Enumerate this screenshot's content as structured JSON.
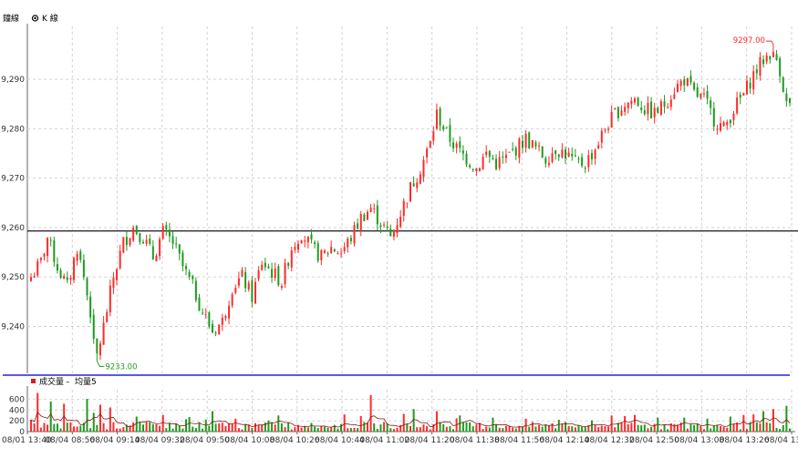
{
  "header": {
    "tab1": "鐘線",
    "tab2": "K 線"
  },
  "volume_legend": {
    "series1": "成交量",
    "sep": "–",
    "series2": "均量5"
  },
  "colors": {
    "up": "#ff2a2a",
    "down": "#1f9a1f",
    "grid": "#d2d2d2",
    "hline": "#000000",
    "separator": "#2222dd",
    "ma": "#8b1a1a"
  },
  "chart_data": [
    {
      "type": "candlestick",
      "title": "",
      "y_ticks": [
        9240,
        9250,
        9260,
        9270,
        9280,
        9290
      ],
      "ylim": [
        9230.5,
        9300.7
      ],
      "reference_line": 9259.3,
      "high_label": "9297.00",
      "low_label": "9233.00",
      "x_ticks": [
        "08/01 13:40",
        "08/04 08:56",
        "08/04 09:14",
        "08/04 09:32",
        "08/04 09:50",
        "08/04 10:08",
        "08/04 10:26",
        "08/04 10:44",
        "08/04 11:02",
        "08/04 11:20",
        "08/04 11:38",
        "08/04 11:56",
        "08/04 12:14",
        "08/04 12:32",
        "08/04 12:50",
        "08/04 13:08",
        "08/04 13:26",
        "08/04 13"
      ],
      "close_path": [
        [
          0,
          9250
        ],
        [
          3,
          9253
        ],
        [
          5,
          9258
        ],
        [
          8,
          9252
        ],
        [
          11,
          9248
        ],
        [
          14,
          9256
        ],
        [
          16,
          9250
        ],
        [
          18,
          9243
        ],
        [
          19,
          9236
        ],
        [
          20,
          9234
        ],
        [
          22,
          9240
        ],
        [
          25,
          9250
        ],
        [
          28,
          9257
        ],
        [
          31,
          9260
        ],
        [
          34,
          9258
        ],
        [
          37,
          9254
        ],
        [
          40,
          9259
        ],
        [
          43,
          9257
        ],
        [
          46,
          9252
        ],
        [
          49,
          9248
        ],
        [
          52,
          9243
        ],
        [
          55,
          9239
        ],
        [
          58,
          9241
        ],
        [
          61,
          9248
        ],
        [
          64,
          9250
        ],
        [
          67,
          9246
        ],
        [
          70,
          9253
        ],
        [
          73,
          9251
        ],
        [
          76,
          9249
        ],
        [
          79,
          9256
        ],
        [
          82,
          9259
        ],
        [
          85,
          9256
        ],
        [
          88,
          9254
        ],
        [
          91,
          9256
        ],
        [
          94,
          9255
        ],
        [
          97,
          9258
        ],
        [
          100,
          9262
        ],
        [
          103,
          9264
        ],
        [
          106,
          9261
        ],
        [
          109,
          9258
        ],
        [
          112,
          9263
        ],
        [
          115,
          9268
        ],
        [
          118,
          9272
        ],
        [
          121,
          9277
        ],
        [
          123,
          9283
        ],
        [
          126,
          9279
        ],
        [
          129,
          9276
        ],
        [
          132,
          9274
        ],
        [
          135,
          9272
        ],
        [
          138,
          9275
        ],
        [
          141,
          9273
        ],
        [
          144,
          9274
        ],
        [
          147,
          9276
        ],
        [
          150,
          9278
        ],
        [
          153,
          9276
        ],
        [
          156,
          9274
        ],
        [
          159,
          9276
        ],
        [
          162,
          9275
        ],
        [
          165,
          9273
        ],
        [
          168,
          9273
        ],
        [
          171,
          9276
        ],
        [
          174,
          9280
        ],
        [
          177,
          9283
        ],
        [
          180,
          9285
        ],
        [
          183,
          9286
        ],
        [
          186,
          9284
        ],
        [
          189,
          9283
        ],
        [
          192,
          9285
        ],
        [
          195,
          9288
        ],
        [
          198,
          9290
        ],
        [
          201,
          9287
        ],
        [
          204,
          9286
        ],
        [
          207,
          9282
        ],
        [
          210,
          9280
        ],
        [
          213,
          9284
        ],
        [
          216,
          9287
        ],
        [
          219,
          9291
        ],
        [
          222,
          9294
        ],
        [
          225,
          9296
        ],
        [
          227,
          9292
        ],
        [
          229,
          9285
        ]
      ],
      "volume": {
        "y_ticks": [
          0,
          200,
          400,
          600
        ],
        "y_tick_labels": [
          "0",
          "200",
          "400",
          "600"
        ],
        "ylim": [
          0,
          780
        ],
        "spikes": [
          [
            2,
            720
          ],
          [
            6,
            560
          ],
          [
            10,
            520
          ],
          [
            17,
            610
          ],
          [
            19,
            350
          ],
          [
            21,
            500
          ],
          [
            24,
            450
          ],
          [
            32,
            280
          ],
          [
            40,
            310
          ],
          [
            48,
            270
          ],
          [
            55,
            380
          ],
          [
            62,
            240
          ],
          [
            75,
            300
          ],
          [
            95,
            320
          ],
          [
            100,
            290
          ],
          [
            103,
            680
          ],
          [
            113,
            330
          ],
          [
            116,
            420
          ],
          [
            123,
            380
          ],
          [
            130,
            300
          ],
          [
            140,
            260
          ],
          [
            150,
            240
          ],
          [
            160,
            220
          ],
          [
            170,
            210
          ],
          [
            176,
            300
          ],
          [
            180,
            290
          ],
          [
            183,
            310
          ],
          [
            190,
            260
          ],
          [
            198,
            260
          ],
          [
            205,
            240
          ],
          [
            212,
            280
          ],
          [
            216,
            310
          ],
          [
            219,
            320
          ],
          [
            222,
            380
          ],
          [
            225,
            420
          ],
          [
            229,
            480
          ]
        ]
      }
    }
  ]
}
